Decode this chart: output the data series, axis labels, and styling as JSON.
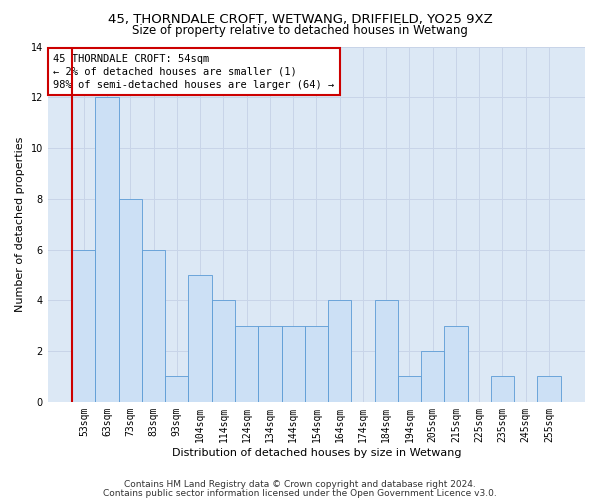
{
  "title1": "45, THORNDALE CROFT, WETWANG, DRIFFIELD, YO25 9XZ",
  "title2": "Size of property relative to detached houses in Wetwang",
  "xlabel": "Distribution of detached houses by size in Wetwang",
  "ylabel": "Number of detached properties",
  "categories": [
    "53sqm",
    "63sqm",
    "73sqm",
    "83sqm",
    "93sqm",
    "104sqm",
    "114sqm",
    "124sqm",
    "134sqm",
    "144sqm",
    "154sqm",
    "164sqm",
    "174sqm",
    "184sqm",
    "194sqm",
    "205sqm",
    "215sqm",
    "225sqm",
    "235sqm",
    "245sqm",
    "255sqm"
  ],
  "values": [
    6,
    12,
    8,
    6,
    1,
    5,
    4,
    3,
    3,
    3,
    3,
    4,
    0,
    4,
    1,
    2,
    3,
    0,
    1,
    0,
    1
  ],
  "bar_color": "#cce0f5",
  "bar_edge_color": "#5b9bd5",
  "highlight_color": "#cc0000",
  "annotation_text": "45 THORNDALE CROFT: 54sqm\n← 2% of detached houses are smaller (1)\n98% of semi-detached houses are larger (64) →",
  "annotation_box_color": "#ffffff",
  "annotation_box_edge": "#cc0000",
  "ylim": [
    0,
    14
  ],
  "yticks": [
    0,
    2,
    4,
    6,
    8,
    10,
    12,
    14
  ],
  "footer1": "Contains HM Land Registry data © Crown copyright and database right 2024.",
  "footer2": "Contains public sector information licensed under the Open Government Licence v3.0.",
  "title1_fontsize": 9.5,
  "title2_fontsize": 8.5,
  "xlabel_fontsize": 8,
  "ylabel_fontsize": 8,
  "tick_fontsize": 7,
  "annotation_fontsize": 7.5,
  "footer_fontsize": 6.5,
  "grid_color": "#c8d4e8",
  "bg_color": "#dce8f5"
}
